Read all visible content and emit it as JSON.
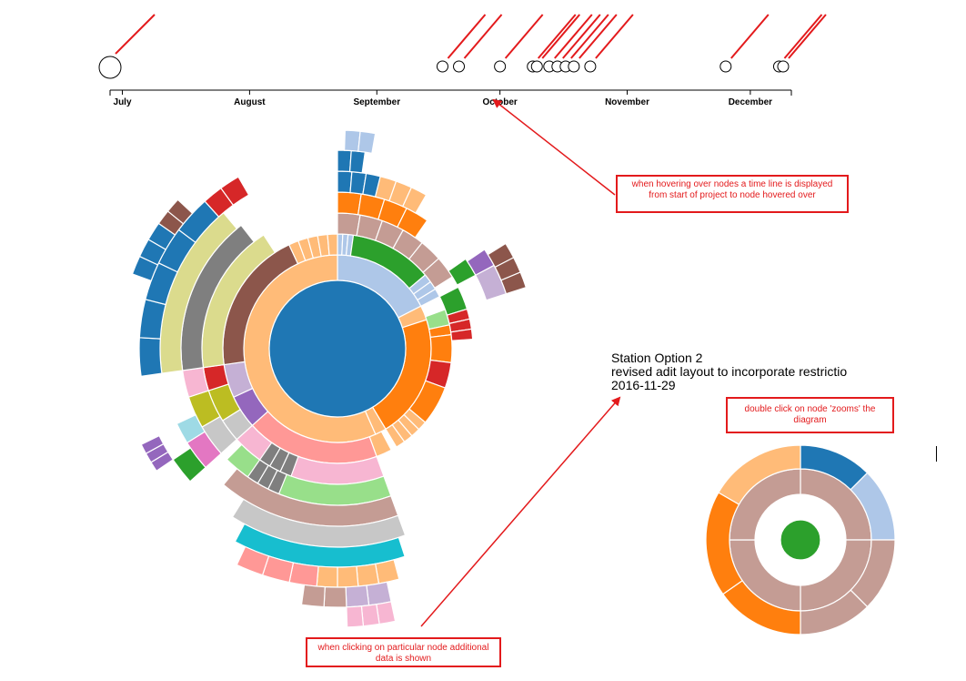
{
  "timeline": {
    "months": [
      "July",
      "August",
      "September",
      "October",
      "November",
      "December"
    ],
    "events": [
      {
        "date": "2016-06-28",
        "size": "large"
      },
      {
        "date": "2016-09-17",
        "size": "small"
      },
      {
        "date": "2016-09-21",
        "size": "small"
      },
      {
        "date": "2016-10-01",
        "size": "small"
      },
      {
        "date": "2016-10-09",
        "size": "small"
      },
      {
        "date": "2016-10-10",
        "size": "small"
      },
      {
        "date": "2016-10-13",
        "size": "small"
      },
      {
        "date": "2016-10-15",
        "size": "small"
      },
      {
        "date": "2016-10-17",
        "size": "small"
      },
      {
        "date": "2016-10-19",
        "size": "small"
      },
      {
        "date": "2016-10-23",
        "size": "small"
      },
      {
        "date": "2016-11-25",
        "size": "small"
      },
      {
        "date": "2016-12-08",
        "size": "small"
      },
      {
        "date": "2016-12-09",
        "size": "small"
      }
    ]
  },
  "info": {
    "line1": "Station Option 2",
    "line2": "revised adit layout to incorporate restrictio",
    "line3": "2016-11-29"
  },
  "annotations": {
    "hover": "when hovering over nodes a time line is displayed from start of project to node hovered over",
    "dblclick": "double click on node 'zooms' the diagram",
    "click": "when clicking on particular node additional data is shown"
  },
  "colors": {
    "annotation": "#e31a1c",
    "center": "#1f77b4",
    "zoom_center": "#2ca02c"
  },
  "chart_data": [
    {
      "type": "timeline",
      "axis": {
        "domain": [
          "2016-06-28",
          "2016-12-11"
        ],
        "ticks": [
          "July",
          "August",
          "September",
          "October",
          "November",
          "December"
        ]
      },
      "points": [
        "2016-06-28",
        "2016-09-17",
        "2016-09-21",
        "2016-10-01",
        "2016-10-09",
        "2016-10-10",
        "2016-10-13",
        "2016-10-15",
        "2016-10-17",
        "2016-10-19",
        "2016-10-23",
        "2016-11-25",
        "2016-12-08",
        "2016-12-09"
      ]
    },
    {
      "type": "sunburst",
      "center_color": "#1f77b4"
    },
    {
      "type": "sunburst",
      "center_color": "#2ca02c"
    }
  ]
}
